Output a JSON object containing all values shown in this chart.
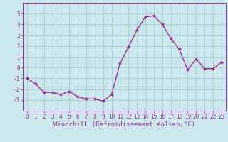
{
  "x": [
    0,
    1,
    2,
    3,
    4,
    5,
    6,
    7,
    8,
    9,
    10,
    11,
    12,
    13,
    14,
    15,
    16,
    17,
    18,
    19,
    20,
    21,
    22,
    23
  ],
  "y": [
    -1.0,
    -1.5,
    -2.3,
    -2.3,
    -2.5,
    -2.2,
    -2.7,
    -2.9,
    -2.9,
    -3.1,
    -2.5,
    0.4,
    1.9,
    3.5,
    4.7,
    4.8,
    4.0,
    2.7,
    1.7,
    -0.2,
    0.8,
    -0.1,
    -0.1,
    0.5
  ],
  "line_color": "#993399",
  "marker": "D",
  "marker_size": 2.0,
  "line_width": 1.0,
  "bg_color": "#cce8ec",
  "grid_color": "#b0d0d8",
  "xlabel": "Windchill (Refroidissement éolien,°C)",
  "xlabel_fontsize": 6.5,
  "tick_color": "#993399",
  "tick_fontsize": 5.5,
  "ylim": [
    -4,
    6
  ],
  "xlim": [
    -0.5,
    23.5
  ],
  "yticks": [
    -3,
    -2,
    -1,
    0,
    1,
    2,
    3,
    4,
    5
  ],
  "xticks": [
    0,
    1,
    2,
    3,
    4,
    5,
    6,
    7,
    8,
    9,
    10,
    11,
    12,
    13,
    14,
    15,
    16,
    17,
    18,
    19,
    20,
    21,
    22,
    23
  ]
}
